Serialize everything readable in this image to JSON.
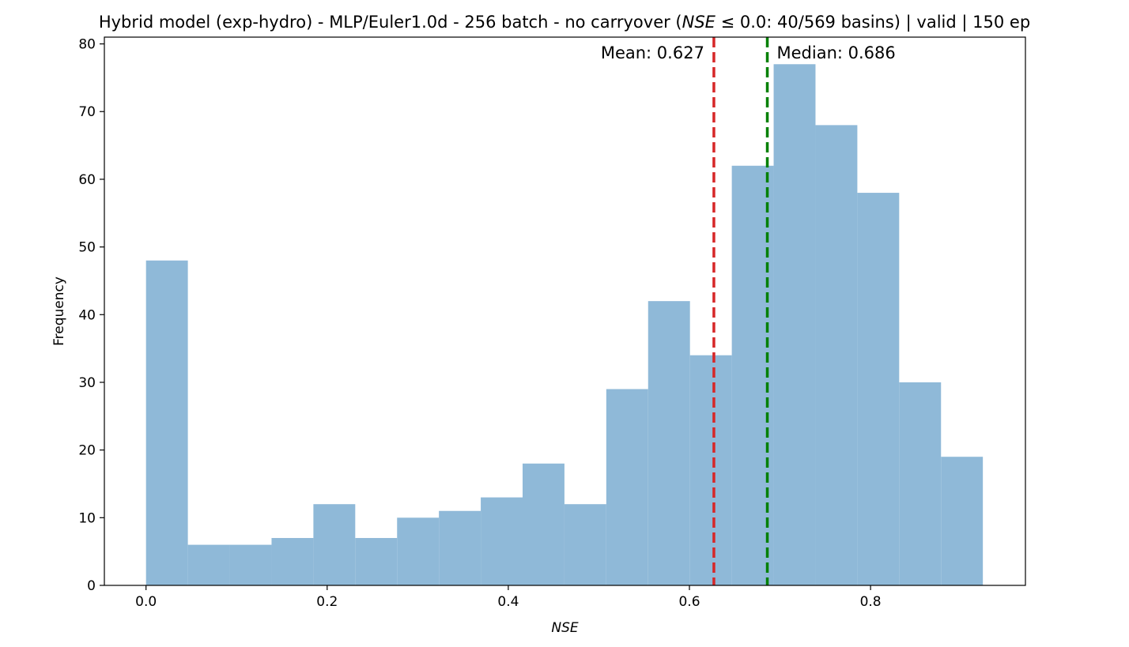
{
  "chart_data": {
    "type": "bar",
    "title_parts": {
      "before": "Hybrid model (exp-hydro) - MLP/Euler1.0d - 256 batch - no carryover (",
      "italic": "NSE",
      "after": " ≤ 0.0: 40/569 basins) | valid | 150 ep"
    },
    "xlabel": "NSE",
    "ylabel": "Frequency",
    "xlim": [
      -0.046,
      0.971
    ],
    "ylim": [
      0,
      81
    ],
    "xticks": [
      0.0,
      0.2,
      0.4,
      0.6,
      0.8
    ],
    "xtick_labels": [
      "0.0",
      "0.2",
      "0.4",
      "0.6",
      "0.8"
    ],
    "yticks": [
      0,
      10,
      20,
      30,
      40,
      50,
      60,
      70,
      80
    ],
    "ytick_labels": [
      "0",
      "10",
      "20",
      "30",
      "40",
      "50",
      "60",
      "70",
      "80"
    ],
    "bin_start": 0.0,
    "bin_end": 0.924,
    "values": [
      48,
      6,
      6,
      7,
      12,
      7,
      10,
      11,
      13,
      18,
      12,
      29,
      42,
      34,
      62,
      77,
      68,
      58,
      30,
      19
    ],
    "bar_color": "#8fb9d8",
    "grid": false,
    "mean": {
      "value": 0.627,
      "label": "Mean: 0.627",
      "color": "#d62728"
    },
    "median": {
      "value": 0.686,
      "label": "Median: 0.686",
      "color": "#008000"
    }
  }
}
